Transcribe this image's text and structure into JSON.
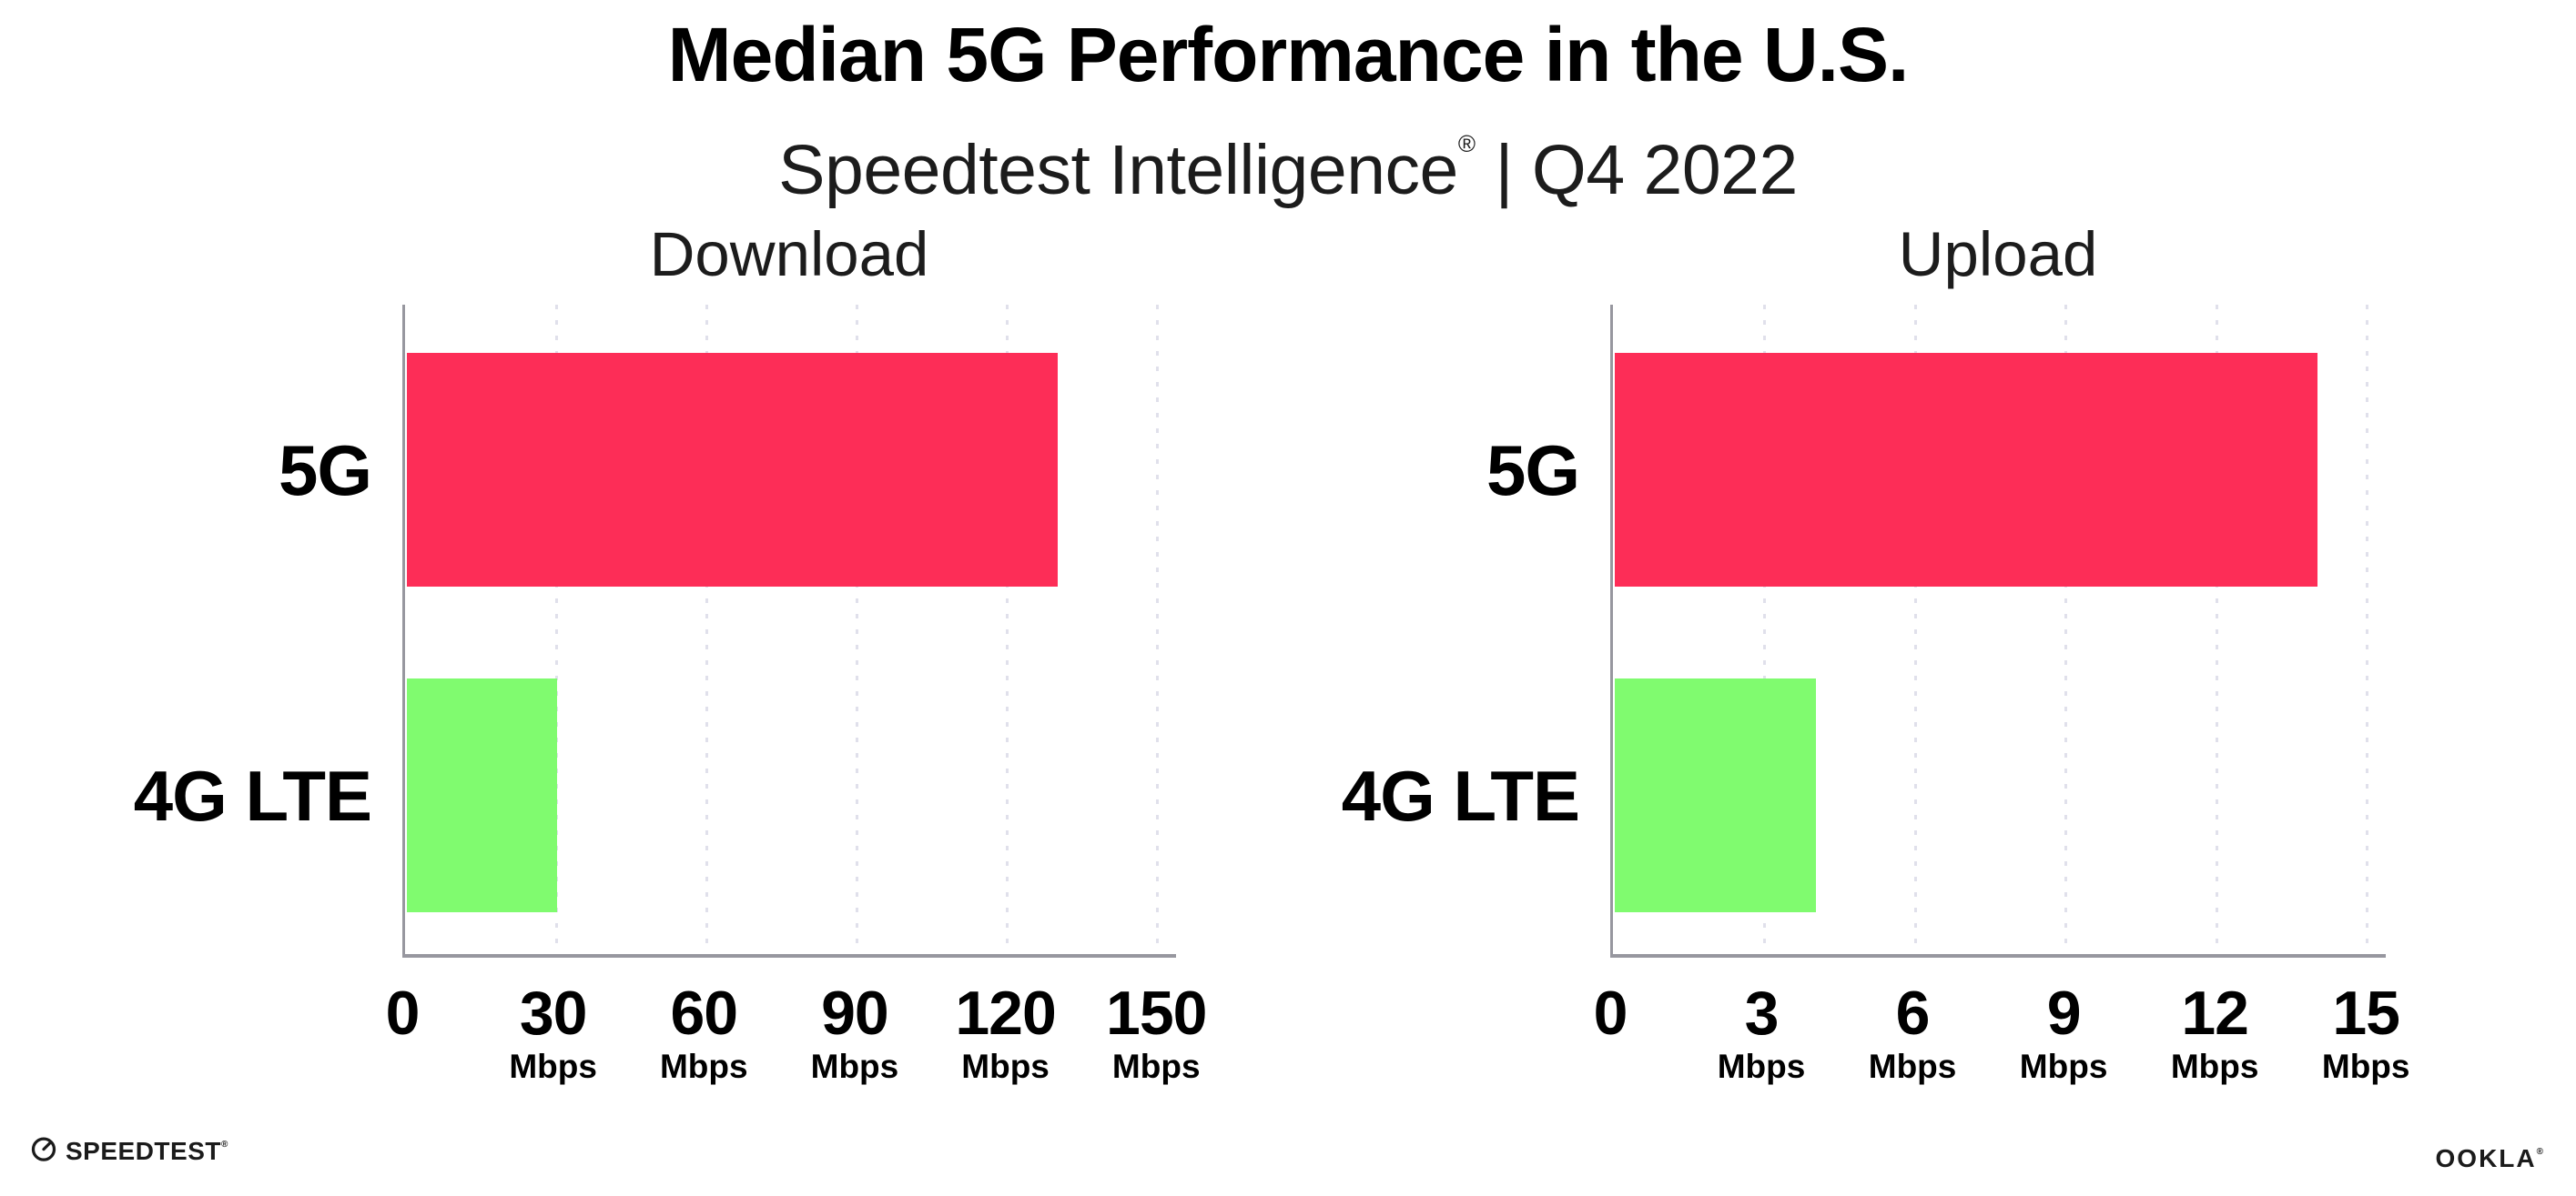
{
  "header": {
    "title": "Median 5G Performance in the U.S.",
    "subtitle_brand": "Speedtest Intelligence",
    "subtitle_reg": "®",
    "subtitle_rest": "| Q4 2022"
  },
  "colors": {
    "bar_5g": "#fd2d57",
    "bar_4g_lte": "#80fb6f",
    "axis": "#97979f",
    "gridline": "#e0e0eb",
    "text": "#000000"
  },
  "chart_data": [
    {
      "type": "bar",
      "orientation": "horizontal",
      "title": "Download",
      "categories": [
        "5G",
        "4G LTE"
      ],
      "values": [
        130,
        30
      ],
      "bar_colors": [
        "#fd2d57",
        "#80fb6f"
      ],
      "unit": "Mbps",
      "xlim": [
        0,
        150
      ],
      "ticks": [
        0,
        30,
        60,
        90,
        120,
        150
      ],
      "tick_unit_label": "Mbps",
      "grid": "dotted-vertical",
      "legend": "none"
    },
    {
      "type": "bar",
      "orientation": "horizontal",
      "title": "Upload",
      "categories": [
        "5G",
        "4G LTE"
      ],
      "values": [
        14,
        4
      ],
      "bar_colors": [
        "#fd2d57",
        "#80fb6f"
      ],
      "unit": "Mbps",
      "xlim": [
        0,
        15
      ],
      "ticks": [
        0,
        3,
        6,
        9,
        12,
        15
      ],
      "tick_unit_label": "Mbps",
      "grid": "dotted-vertical",
      "legend": "none"
    }
  ],
  "footer": {
    "speedtest_logo_text": "SPEEDTEST",
    "speedtest_reg": "®",
    "ookla_logo_text": "OOKLA",
    "ookla_reg": "®"
  }
}
